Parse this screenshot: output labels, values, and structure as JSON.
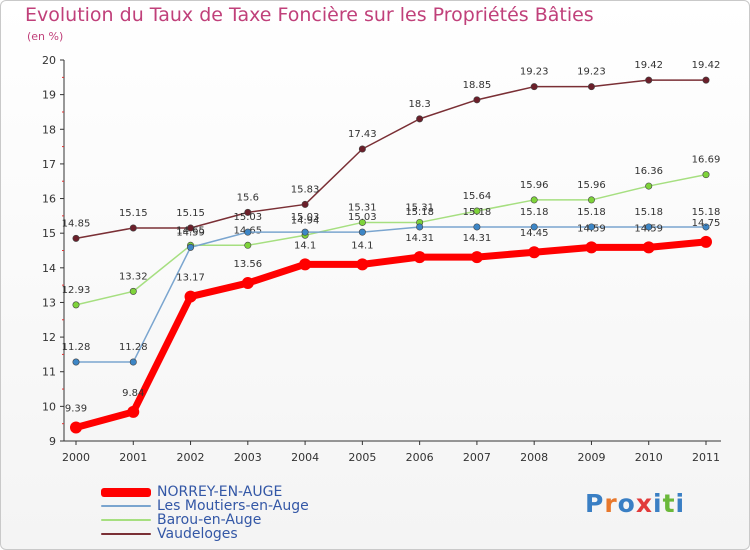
{
  "chart_data": {
    "type": "line",
    "title": "Evolution du Taux de Taxe Foncière sur les Propriétés Bâties",
    "unit_label": "(en %)",
    "xlabel": "",
    "ylabel": "",
    "x": [
      "2000",
      "2001",
      "2002",
      "2003",
      "2004",
      "2005",
      "2006",
      "2007",
      "2008",
      "2009",
      "2010",
      "2011"
    ],
    "ylim": [
      9,
      20
    ],
    "yticks": [
      9,
      10,
      11,
      12,
      13,
      14,
      15,
      16,
      17,
      18,
      19,
      20
    ],
    "grid": false,
    "legend_position": "bottom-left",
    "series": [
      {
        "name": "Vaudeloges",
        "color": "#7a2f35",
        "point_color": "#6b1f2a",
        "values": [
          14.85,
          15.15,
          15.15,
          15.6,
          15.83,
          17.43,
          18.3,
          18.85,
          19.23,
          19.23,
          19.42,
          19.42
        ],
        "labels": [
          "14.85",
          "15.15",
          "15.15",
          "15.6",
          "15.83",
          "17.43",
          "18.3",
          "18.85",
          "19.23",
          "19.23",
          "19.42",
          "19.42"
        ]
      },
      {
        "name": "Barou-en-Auge",
        "color": "#a6df80",
        "point_color": "#7ed33a",
        "values": [
          12.93,
          13.32,
          14.65,
          14.65,
          14.94,
          15.31,
          15.31,
          15.64,
          15.96,
          15.96,
          16.36,
          16.69
        ],
        "labels": [
          "12.93",
          "13.32",
          "14.65",
          "14.65",
          "14.94",
          "15.31",
          "15.31",
          "15.64",
          "15.96",
          "15.96",
          "16.36",
          "16.69"
        ]
      },
      {
        "name": "Les Moutiers-en-Auge",
        "color": "#7aa5cf",
        "point_color": "#3d86c6",
        "values": [
          11.28,
          11.28,
          14.59,
          15.03,
          15.03,
          15.03,
          15.18,
          15.18,
          15.18,
          15.18,
          15.18,
          15.18
        ],
        "labels": [
          "11.28",
          "11.28",
          "14.59",
          "15.03",
          "15.03",
          "15.03",
          "15.18",
          "15.18",
          "15.18",
          "15.18",
          "15.18",
          "15.18"
        ]
      },
      {
        "name": "NORREY-EN-AUGE",
        "color": "#ff0000",
        "point_color": "#ff0000",
        "values": [
          9.39,
          9.84,
          13.17,
          13.56,
          14.1,
          14.1,
          14.31,
          14.31,
          14.45,
          14.59,
          14.59,
          14.75
        ],
        "labels": [
          "9.39",
          "9.84",
          "13.17",
          "13.56",
          "14.1",
          "14.1",
          "14.31",
          "14.31",
          "14.45",
          "14.59",
          "14.59",
          "14.75"
        ]
      }
    ],
    "legend_order": [
      "NORREY-EN-AUGE",
      "Les Moutiers-en-Auge",
      "Barou-en-Auge",
      "Vaudeloges"
    ]
  },
  "logo": {
    "text": "Proxiti"
  }
}
